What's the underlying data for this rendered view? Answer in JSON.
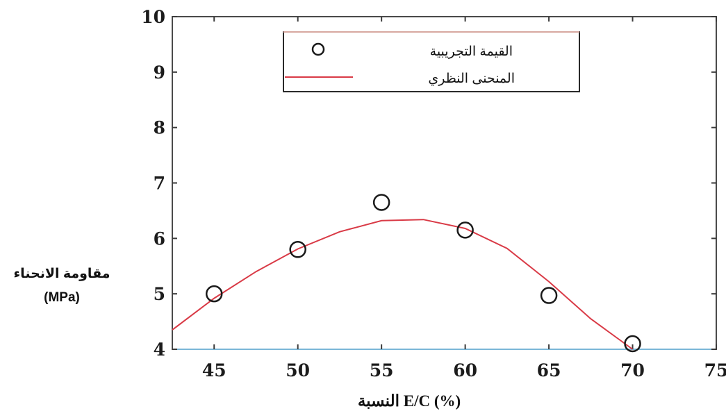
{
  "chart_data": {
    "type": "scatter",
    "title": "",
    "xlabel": "النسبة E/C (%)",
    "ylabel_line1": "مقاومة الانحناء",
    "ylabel_line2": "(MPa)",
    "xlim": [
      42.5,
      75
    ],
    "ylim": [
      4,
      10
    ],
    "x_ticks": [
      45,
      50,
      55,
      60,
      65,
      70,
      75
    ],
    "y_ticks": [
      4,
      5,
      6,
      7,
      8,
      9,
      10
    ],
    "grid": false,
    "legend_position": "top-center",
    "series": [
      {
        "name": "القيمة التجريبية",
        "kind": "points",
        "marker": "open-circle",
        "color": "#1a1a1a",
        "x": [
          45,
          50,
          55,
          60,
          65,
          70
        ],
        "y": [
          5.0,
          5.8,
          6.65,
          6.15,
          4.97,
          4.1
        ]
      },
      {
        "name": "المنحنى النظري",
        "kind": "curve",
        "color": "#d93a46",
        "x": [
          42.5,
          45,
          47.5,
          50,
          52.5,
          55,
          57.5,
          60,
          62.5,
          65,
          67.5,
          70
        ],
        "y": [
          4.35,
          4.92,
          5.4,
          5.81,
          6.12,
          6.32,
          6.34,
          6.18,
          5.82,
          5.22,
          4.55,
          4.0
        ]
      }
    ]
  }
}
